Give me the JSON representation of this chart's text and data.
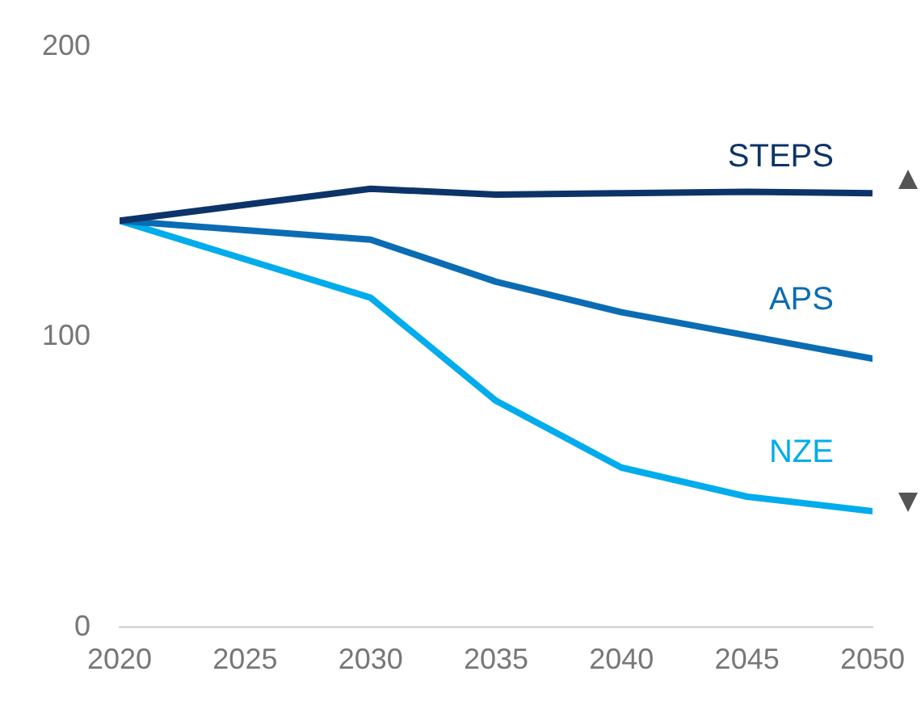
{
  "chart_data": {
    "type": "line",
    "x": [
      2020,
      2030,
      2035,
      2040,
      2045,
      2050
    ],
    "xlim": [
      2020,
      2050
    ],
    "xticks": [
      2020,
      2025,
      2030,
      2035,
      2040,
      2045,
      2050
    ],
    "ylim": [
      0,
      200
    ],
    "yticks": [
      0,
      100,
      200
    ],
    "grid": false,
    "legend": false,
    "marker": "none",
    "line_style": "solid",
    "series": [
      {
        "name": "STEPS",
        "color": "#0d3468",
        "values": [
          140,
          151,
          149,
          149.5,
          150,
          149.5
        ]
      },
      {
        "name": "APS",
        "color": "#0b6cb4",
        "values": [
          140,
          133.5,
          119,
          108.5,
          100.5,
          92.5
        ]
      },
      {
        "name": "NZE",
        "color": "#00acec",
        "values": [
          140,
          113.5,
          78,
          55,
          45,
          40
        ]
      }
    ]
  }
}
